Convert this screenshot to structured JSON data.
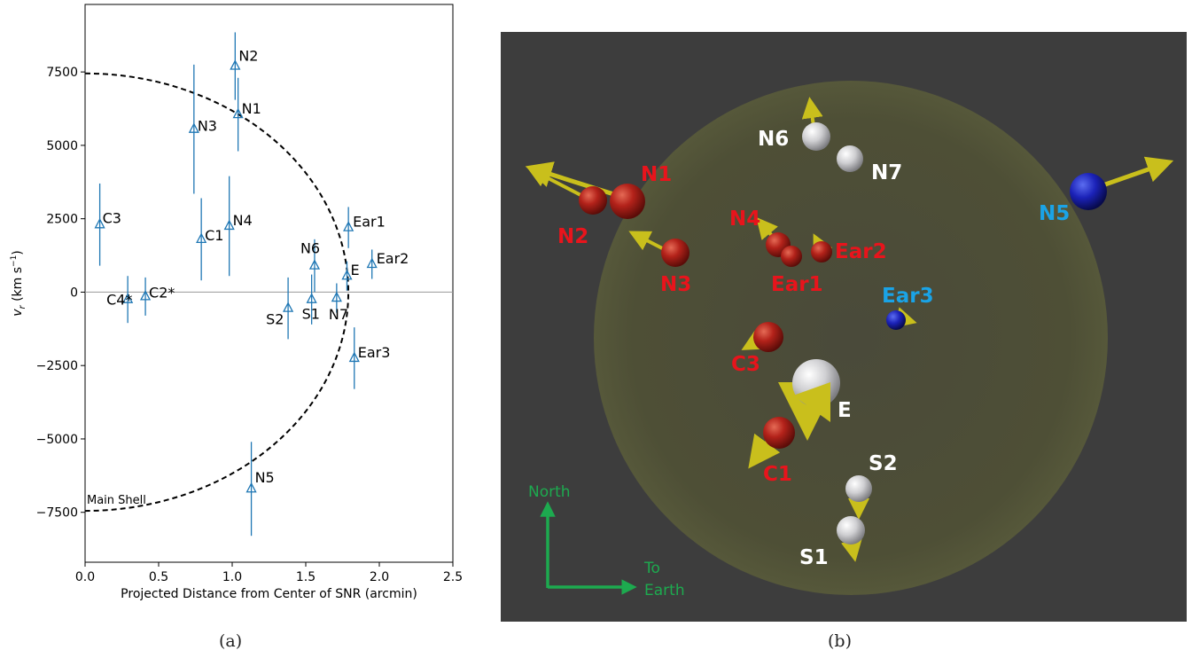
{
  "panel_a": {
    "caption": "(a)",
    "chart_data": {
      "type": "scatter",
      "xlabel": "Projected Distance from Center of SNR (arcmin)",
      "ylabel_main": "v",
      "ylabel_sub": "r",
      "ylabel_unit": "(km s",
      "ylabel_exp": "−1",
      "ylabel_close": ")",
      "xlim": [
        0,
        2.5
      ],
      "ylim": [
        -9200,
        9800
      ],
      "x_ticks": [
        0.0,
        0.5,
        1.0,
        1.5,
        2.0,
        2.5
      ],
      "x_tick_labels": [
        "0.0",
        "0.5",
        "1.0",
        "1.5",
        "2.0",
        "2.5"
      ],
      "y_ticks": [
        -7500,
        -5000,
        -2500,
        0,
        2500,
        5000,
        7500
      ],
      "y_tick_labels": [
        "−7500",
        "−5000",
        "−2500",
        "0",
        "2500",
        "5000",
        "7500"
      ],
      "marker_color": "#1f77b4",
      "marker": "open-triangle",
      "zero_line": true,
      "shell": {
        "label": "Main Shell",
        "radius_x": 1.79,
        "radius_y": 7450,
        "style": "dashed"
      },
      "points": [
        {
          "label": "N2",
          "x": 1.02,
          "y": 7700,
          "err": 1150
        },
        {
          "label": "N1",
          "x": 1.04,
          "y": 6050,
          "err": 1250
        },
        {
          "label": "N3",
          "x": 0.74,
          "y": 5550,
          "err": 2200
        },
        {
          "label": "C3",
          "x": 0.1,
          "y": 2300,
          "err": 1400
        },
        {
          "label": "C1",
          "x": 0.79,
          "y": 1800,
          "err": 1400
        },
        {
          "label": "N4",
          "x": 0.98,
          "y": 2250,
          "err": 1700
        },
        {
          "label": "Ear1",
          "x": 1.79,
          "y": 2200,
          "err": 700
        },
        {
          "label": "Ear2",
          "x": 1.95,
          "y": 950,
          "err": 500
        },
        {
          "label": "N6",
          "x": 1.56,
          "y": 900,
          "err": 900
        },
        {
          "label": "E",
          "x": 1.78,
          "y": 550,
          "err": 500
        },
        {
          "label": "C4*",
          "x": 0.29,
          "y": -250,
          "err": 800
        },
        {
          "label": "C2*",
          "x": 0.41,
          "y": -150,
          "err": 650
        },
        {
          "label": "S2",
          "x": 1.38,
          "y": -550,
          "err": 1050
        },
        {
          "label": "S1",
          "x": 1.54,
          "y": -250,
          "err": 850
        },
        {
          "label": "N7",
          "x": 1.71,
          "y": -200,
          "err": 500
        },
        {
          "label": "Ear3",
          "x": 1.83,
          "y": -2250,
          "err": 1050
        },
        {
          "label": "N5",
          "x": 1.13,
          "y": -6700,
          "err": 1600
        }
      ]
    }
  },
  "panel_b": {
    "caption": "(b)",
    "background": "#3d3d3d",
    "sphere_fill": "#4d4e35",
    "arrow_color": "#c9bf1c",
    "legend": {
      "north": "North",
      "to": "To",
      "earth": "Earth",
      "color": "#1daa4f"
    },
    "knots": [
      {
        "label": "N1",
        "kind": "red",
        "label_color": "#e8141c"
      },
      {
        "label": "N2",
        "kind": "red",
        "label_color": "#e8141c"
      },
      {
        "label": "N3",
        "kind": "red",
        "label_color": "#e8141c"
      },
      {
        "label": "N4",
        "kind": "red",
        "label_color": "#e8141c"
      },
      {
        "label": "Ear1",
        "kind": "red",
        "label_color": "#e8141c"
      },
      {
        "label": "Ear2",
        "kind": "red",
        "label_color": "#e8141c"
      },
      {
        "label": "C3",
        "kind": "red",
        "label_color": "#e8141c"
      },
      {
        "label": "C1",
        "kind": "red",
        "label_color": "#e8141c"
      },
      {
        "label": "N6",
        "kind": "white",
        "label_color": "#ffffff"
      },
      {
        "label": "N7",
        "kind": "white",
        "label_color": "#ffffff"
      },
      {
        "label": "E",
        "kind": "white",
        "label_color": "#ffffff"
      },
      {
        "label": "S2",
        "kind": "white",
        "label_color": "#ffffff"
      },
      {
        "label": "S1",
        "kind": "white",
        "label_color": "#ffffff"
      },
      {
        "label": "N5",
        "kind": "blue",
        "label_color": "#1aa3e6"
      },
      {
        "label": "Ear3",
        "kind": "blue",
        "label_color": "#1aa3e6"
      }
    ]
  }
}
